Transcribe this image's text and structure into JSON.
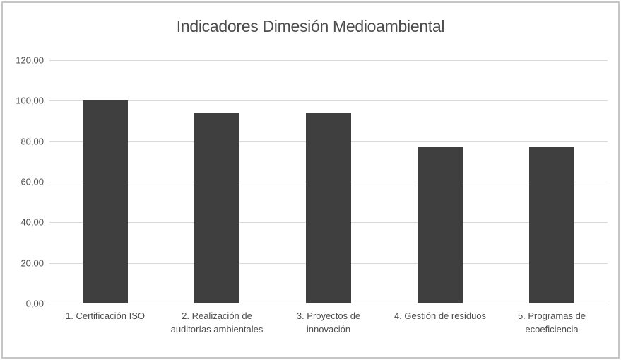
{
  "chart_data": {
    "type": "bar",
    "title": "Indicadores Dimesión Medioambiental",
    "categories": [
      "1. Certificación ISO",
      "2. Realización de auditorías ambientales",
      "3. Proyectos de innovación",
      "4. Gestión de residuos",
      "5. Programas de ecoeficiencia"
    ],
    "values": [
      100,
      94,
      94,
      77,
      77
    ],
    "xlabel": "",
    "ylabel": "",
    "ylim": [
      0,
      120
    ],
    "y_ticks": [
      120,
      100,
      80,
      60,
      40,
      20,
      0
    ],
    "y_tick_labels": [
      "120,00",
      "100,00",
      "80,00",
      "60,00",
      "40,00",
      "20,00",
      "0,00"
    ],
    "grid": true,
    "legend_position": "none",
    "colors": {
      "bar": "#3f3f3f",
      "gridline": "#d9d9d9",
      "axis_line": "#bfbfbf",
      "text": "#4d4d4d",
      "frame_border": "#c6c6c6",
      "background": "#ffffff"
    }
  }
}
